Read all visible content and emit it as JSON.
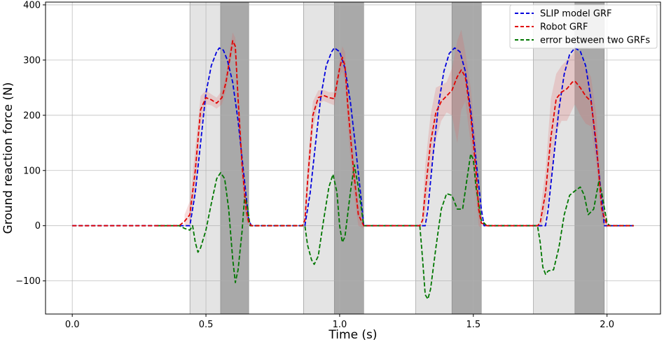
{
  "chart_data": {
    "type": "line",
    "xlabel": "Time (s)",
    "ylabel": "Ground reaction force (N)",
    "xlim": [
      -0.1,
      2.2
    ],
    "ylim": [
      -160,
      405
    ],
    "x_ticks": [
      0.0,
      0.5,
      1.0,
      1.5,
      2.0
    ],
    "x_tick_labels": [
      "0.0",
      "0.5",
      "1.0",
      "1.5",
      "2.0"
    ],
    "y_ticks": [
      -100,
      0,
      100,
      200,
      300,
      400
    ],
    "y_tick_labels": [
      "−100",
      "0",
      "100",
      "200",
      "300",
      "400"
    ],
    "grid": true,
    "legend_position": "top-right",
    "colors": {
      "slip": "#0000dd",
      "robot": "#e00000",
      "error": "#007700",
      "band": "#e06060",
      "light_span": "#e4e4e4",
      "dark_span": "#a9a9a9"
    },
    "spans": [
      {
        "x0": 0.44,
        "x1": 0.555,
        "shade": "light"
      },
      {
        "x0": 0.555,
        "x1": 0.66,
        "shade": "dark"
      },
      {
        "x0": 0.865,
        "x1": 0.98,
        "shade": "light"
      },
      {
        "x0": 0.98,
        "x1": 1.09,
        "shade": "dark"
      },
      {
        "x0": 1.285,
        "x1": 1.42,
        "shade": "light"
      },
      {
        "x0": 1.42,
        "x1": 1.53,
        "shade": "dark"
      },
      {
        "x0": 1.725,
        "x1": 1.88,
        "shade": "light"
      },
      {
        "x0": 1.88,
        "x1": 1.99,
        "shade": "dark"
      }
    ],
    "series": [
      {
        "name": "SLIP model GRF",
        "color": "#0000dd",
        "points": [
          [
            0.0,
            0
          ],
          [
            0.4,
            0
          ],
          [
            0.44,
            0
          ],
          [
            0.46,
            60
          ],
          [
            0.48,
            150
          ],
          [
            0.5,
            240
          ],
          [
            0.52,
            290
          ],
          [
            0.54,
            315
          ],
          [
            0.55,
            322
          ],
          [
            0.565,
            318
          ],
          [
            0.58,
            300
          ],
          [
            0.6,
            260
          ],
          [
            0.62,
            190
          ],
          [
            0.64,
            100
          ],
          [
            0.66,
            10
          ],
          [
            0.67,
            0
          ],
          [
            0.87,
            0
          ],
          [
            0.89,
            60
          ],
          [
            0.91,
            150
          ],
          [
            0.93,
            235
          ],
          [
            0.95,
            290
          ],
          [
            0.97,
            315
          ],
          [
            0.98,
            322
          ],
          [
            1.0,
            315
          ],
          [
            1.02,
            285
          ],
          [
            1.04,
            225
          ],
          [
            1.06,
            140
          ],
          [
            1.08,
            50
          ],
          [
            1.09,
            0
          ],
          [
            1.32,
            0
          ],
          [
            1.33,
            30
          ],
          [
            1.35,
            130
          ],
          [
            1.37,
            220
          ],
          [
            1.39,
            280
          ],
          [
            1.41,
            312
          ],
          [
            1.43,
            322
          ],
          [
            1.45,
            315
          ],
          [
            1.47,
            280
          ],
          [
            1.49,
            210
          ],
          [
            1.51,
            120
          ],
          [
            1.53,
            30
          ],
          [
            1.54,
            0
          ],
          [
            1.77,
            0
          ],
          [
            1.78,
            30
          ],
          [
            1.8,
            120
          ],
          [
            1.82,
            210
          ],
          [
            1.84,
            275
          ],
          [
            1.86,
            310
          ],
          [
            1.88,
            322
          ],
          [
            1.9,
            316
          ],
          [
            1.92,
            290
          ],
          [
            1.94,
            230
          ],
          [
            1.96,
            140
          ],
          [
            1.98,
            50
          ],
          [
            1.99,
            0
          ],
          [
            2.1,
            0
          ]
        ]
      },
      {
        "name": "Robot GRF",
        "color": "#e00000",
        "points": [
          [
            0.0,
            0
          ],
          [
            0.4,
            0
          ],
          [
            0.42,
            8
          ],
          [
            0.44,
            20
          ],
          [
            0.46,
            100
          ],
          [
            0.48,
            210
          ],
          [
            0.5,
            232
          ],
          [
            0.52,
            228
          ],
          [
            0.54,
            222
          ],
          [
            0.56,
            232
          ],
          [
            0.575,
            260
          ],
          [
            0.59,
            305
          ],
          [
            0.6,
            335
          ],
          [
            0.61,
            325
          ],
          [
            0.62,
            230
          ],
          [
            0.635,
            110
          ],
          [
            0.65,
            30
          ],
          [
            0.66,
            5
          ],
          [
            0.67,
            0
          ],
          [
            0.86,
            0
          ],
          [
            0.87,
            10
          ],
          [
            0.88,
            80
          ],
          [
            0.9,
            200
          ],
          [
            0.92,
            232
          ],
          [
            0.94,
            236
          ],
          [
            0.96,
            232
          ],
          [
            0.98,
            230
          ],
          [
            0.99,
            258
          ],
          [
            1.0,
            285
          ],
          [
            1.01,
            305
          ],
          [
            1.02,
            290
          ],
          [
            1.03,
            220
          ],
          [
            1.05,
            110
          ],
          [
            1.07,
            20
          ],
          [
            1.09,
            0
          ],
          [
            1.3,
            0
          ],
          [
            1.31,
            10
          ],
          [
            1.32,
            60
          ],
          [
            1.34,
            150
          ],
          [
            1.36,
            205
          ],
          [
            1.38,
            225
          ],
          [
            1.4,
            235
          ],
          [
            1.42,
            245
          ],
          [
            1.44,
            270
          ],
          [
            1.455,
            282
          ],
          [
            1.47,
            270
          ],
          [
            1.49,
            200
          ],
          [
            1.51,
            100
          ],
          [
            1.52,
            30
          ],
          [
            1.53,
            5
          ],
          [
            1.55,
            0
          ],
          [
            1.74,
            0
          ],
          [
            1.75,
            5
          ],
          [
            1.77,
            60
          ],
          [
            1.79,
            160
          ],
          [
            1.81,
            230
          ],
          [
            1.83,
            242
          ],
          [
            1.85,
            248
          ],
          [
            1.87,
            260
          ],
          [
            1.88,
            262
          ],
          [
            1.9,
            250
          ],
          [
            1.92,
            235
          ],
          [
            1.94,
            225
          ],
          [
            1.96,
            150
          ],
          [
            1.98,
            30
          ],
          [
            2.0,
            0
          ],
          [
            2.1,
            0
          ]
        ]
      },
      {
        "name": "error between two GRFs",
        "color": "#007700",
        "points": [
          [
            0.32,
            0
          ],
          [
            0.4,
            0
          ],
          [
            0.42,
            -5
          ],
          [
            0.44,
            -8
          ],
          [
            0.45,
            0
          ],
          [
            0.46,
            -30
          ],
          [
            0.47,
            -48
          ],
          [
            0.48,
            -40
          ],
          [
            0.5,
            -8
          ],
          [
            0.52,
            40
          ],
          [
            0.54,
            85
          ],
          [
            0.555,
            96
          ],
          [
            0.57,
            85
          ],
          [
            0.585,
            30
          ],
          [
            0.6,
            -60
          ],
          [
            0.61,
            -103
          ],
          [
            0.62,
            -80
          ],
          [
            0.635,
            -10
          ],
          [
            0.645,
            55
          ],
          [
            0.655,
            35
          ],
          [
            0.665,
            0
          ],
          [
            0.87,
            0
          ],
          [
            0.88,
            -35
          ],
          [
            0.895,
            -62
          ],
          [
            0.905,
            -70
          ],
          [
            0.92,
            -55
          ],
          [
            0.94,
            10
          ],
          [
            0.96,
            70
          ],
          [
            0.975,
            93
          ],
          [
            0.99,
            60
          ],
          [
            1.0,
            0
          ],
          [
            1.01,
            -30
          ],
          [
            1.02,
            -20
          ],
          [
            1.04,
            60
          ],
          [
            1.055,
            110
          ],
          [
            1.07,
            70
          ],
          [
            1.09,
            0
          ],
          [
            1.3,
            0
          ],
          [
            1.31,
            -60
          ],
          [
            1.32,
            -125
          ],
          [
            1.33,
            -133
          ],
          [
            1.34,
            -115
          ],
          [
            1.36,
            -40
          ],
          [
            1.38,
            30
          ],
          [
            1.4,
            58
          ],
          [
            1.42,
            55
          ],
          [
            1.44,
            30
          ],
          [
            1.46,
            30
          ],
          [
            1.475,
            80
          ],
          [
            1.49,
            130
          ],
          [
            1.5,
            120
          ],
          [
            1.51,
            70
          ],
          [
            1.53,
            10
          ],
          [
            1.55,
            0
          ],
          [
            1.74,
            0
          ],
          [
            1.75,
            -30
          ],
          [
            1.76,
            -75
          ],
          [
            1.77,
            -88
          ],
          [
            1.78,
            -82
          ],
          [
            1.8,
            -80
          ],
          [
            1.82,
            -40
          ],
          [
            1.84,
            20
          ],
          [
            1.86,
            55
          ],
          [
            1.88,
            63
          ],
          [
            1.9,
            70
          ],
          [
            1.915,
            55
          ],
          [
            1.93,
            20
          ],
          [
            1.95,
            30
          ],
          [
            1.97,
            82
          ],
          [
            1.98,
            60
          ],
          [
            2.0,
            5
          ],
          [
            2.01,
            0
          ],
          [
            2.1,
            0
          ]
        ]
      }
    ],
    "robot_band": {
      "name": "Robot GRF",
      "points": [
        [
          0.42,
          -2,
          20
        ],
        [
          0.44,
          0,
          45
        ],
        [
          0.46,
          60,
          140
        ],
        [
          0.48,
          180,
          235
        ],
        [
          0.5,
          220,
          245
        ],
        [
          0.52,
          218,
          238
        ],
        [
          0.54,
          212,
          232
        ],
        [
          0.56,
          220,
          245
        ],
        [
          0.575,
          245,
          275
        ],
        [
          0.59,
          290,
          322
        ],
        [
          0.6,
          318,
          350
        ],
        [
          0.61,
          305,
          340
        ],
        [
          0.62,
          200,
          255
        ],
        [
          0.635,
          80,
          140
        ],
        [
          0.65,
          10,
          50
        ],
        [
          0.66,
          0,
          15
        ],
        [
          0.87,
          0,
          25
        ],
        [
          0.88,
          50,
          110
        ],
        [
          0.9,
          175,
          225
        ],
        [
          0.92,
          220,
          245
        ],
        [
          0.94,
          226,
          246
        ],
        [
          0.96,
          222,
          242
        ],
        [
          0.98,
          218,
          242
        ],
        [
          0.99,
          245,
          270
        ],
        [
          1.0,
          270,
          300
        ],
        [
          1.01,
          280,
          325
        ],
        [
          1.02,
          260,
          315
        ],
        [
          1.03,
          180,
          250
        ],
        [
          1.05,
          70,
          140
        ],
        [
          1.07,
          0,
          40
        ],
        [
          1.09,
          -5,
          10
        ],
        [
          1.31,
          0,
          30
        ],
        [
          1.32,
          20,
          110
        ],
        [
          1.34,
          95,
          200
        ],
        [
          1.36,
          155,
          250
        ],
        [
          1.38,
          190,
          255
        ],
        [
          1.4,
          205,
          260
        ],
        [
          1.42,
          200,
          285
        ],
        [
          1.44,
          150,
          335
        ],
        [
          1.455,
          210,
          355
        ],
        [
          1.47,
          225,
          315
        ],
        [
          1.49,
          150,
          250
        ],
        [
          1.51,
          50,
          150
        ],
        [
          1.52,
          0,
          65
        ],
        [
          1.53,
          -5,
          20
        ],
        [
          1.75,
          -5,
          25
        ],
        [
          1.77,
          20,
          100
        ],
        [
          1.79,
          80,
          230
        ],
        [
          1.81,
          170,
          275
        ],
        [
          1.83,
          190,
          290
        ],
        [
          1.85,
          190,
          300
        ],
        [
          1.87,
          210,
          310
        ],
        [
          1.88,
          220,
          320
        ],
        [
          1.9,
          200,
          310
        ],
        [
          1.92,
          185,
          285
        ],
        [
          1.94,
          180,
          270
        ],
        [
          1.96,
          110,
          200
        ],
        [
          1.98,
          5,
          60
        ],
        [
          2.0,
          -5,
          10
        ]
      ]
    },
    "legend": [
      "SLIP model GRF",
      "Robot GRF",
      "error between two GRFs"
    ]
  }
}
